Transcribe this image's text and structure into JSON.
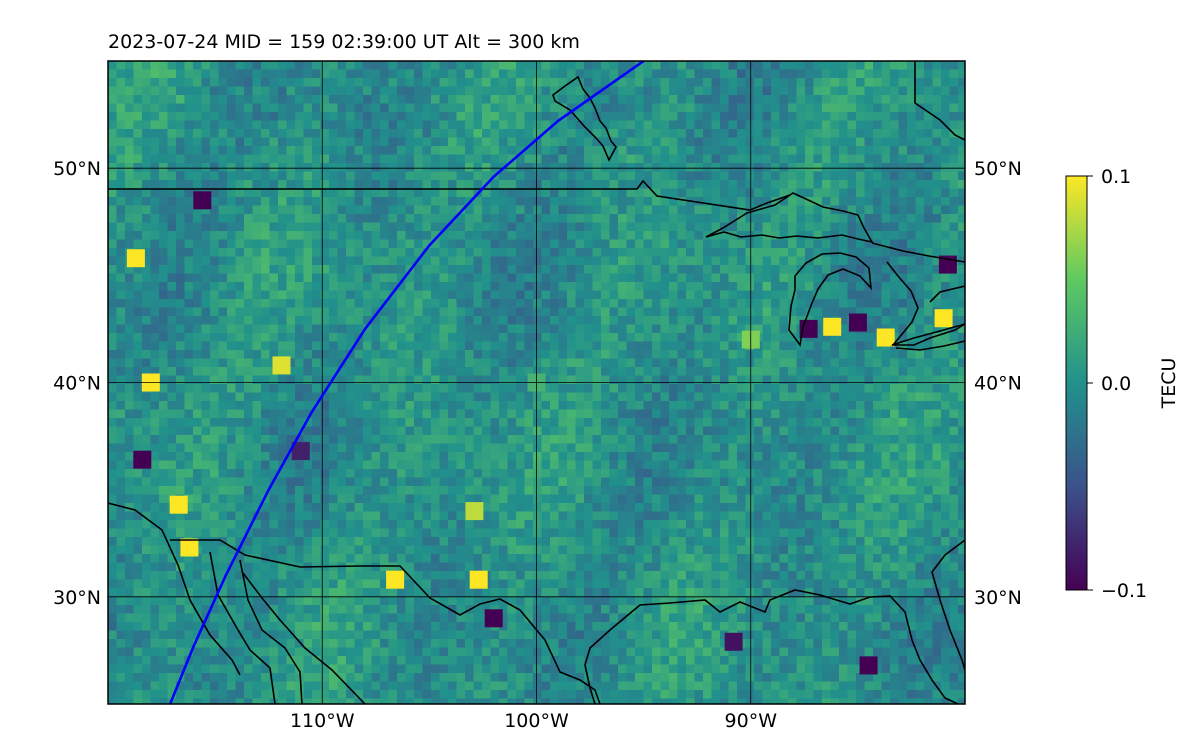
{
  "title": "2023-07-24  MID = 159    02:39:00  UT  Alt = 300 km",
  "chart_data": {
    "type": "heatmap",
    "title": "2023-07-24  MID = 159    02:39:00  UT  Alt = 300 km",
    "map_extent": {
      "lon": [
        -120,
        -80
      ],
      "lat": [
        25,
        55
      ]
    },
    "x_ticks": [
      {
        "value": -110,
        "label": "110°W"
      },
      {
        "value": -100,
        "label": "100°W"
      },
      {
        "value": -90,
        "label": "90°W"
      }
    ],
    "y_ticks": [
      {
        "value": 30,
        "label": "30°N"
      },
      {
        "value": 40,
        "label": "40°N"
      },
      {
        "value": 50,
        "label": "50°N"
      }
    ],
    "grid": true,
    "colormap": "viridis",
    "colorbar": {
      "label": "TECU",
      "range": [
        -0.1,
        0.1
      ],
      "ticks": [
        {
          "value": 0.1,
          "label": "0.1"
        },
        {
          "value": 0.0,
          "label": "0.0"
        },
        {
          "value": -0.1,
          "label": "−0.1"
        }
      ]
    },
    "overlays": [
      {
        "kind": "track",
        "color": "#0000ff",
        "points": [
          [
            -117.1,
            25.0
          ],
          [
            -116.0,
            27.7
          ],
          [
            -114.5,
            31.0
          ],
          [
            -112.5,
            35.0
          ],
          [
            -110.5,
            38.6
          ],
          [
            -108.0,
            42.5
          ],
          [
            -105.0,
            46.4
          ],
          [
            -102.0,
            49.6
          ],
          [
            -99.0,
            52.2
          ],
          [
            -95.0,
            55.0
          ]
        ]
      }
    ],
    "anomalies": [
      {
        "lon": -118.7,
        "lat": 45.8,
        "value": 0.1
      },
      {
        "lon": -115.6,
        "lat": 48.5,
        "value": -0.1
      },
      {
        "lon": -116.7,
        "lat": 34.3,
        "value": 0.1
      },
      {
        "lon": -118.4,
        "lat": 36.4,
        "value": -0.1
      },
      {
        "lon": -116.2,
        "lat": 32.3,
        "value": 0.1
      },
      {
        "lon": -118.0,
        "lat": 40.0,
        "value": 0.1
      },
      {
        "lon": -111.9,
        "lat": 40.8,
        "value": 0.09
      },
      {
        "lon": -106.6,
        "lat": 30.8,
        "value": 0.1
      },
      {
        "lon": -102.9,
        "lat": 34.0,
        "value": 0.08
      },
      {
        "lon": -102.7,
        "lat": 30.8,
        "value": 0.1
      },
      {
        "lon": -102.0,
        "lat": 29.0,
        "value": -0.1
      },
      {
        "lon": -111.0,
        "lat": 36.8,
        "value": -0.08
      },
      {
        "lon": -90.8,
        "lat": 27.9,
        "value": -0.09
      },
      {
        "lon": -84.5,
        "lat": 26.8,
        "value": -0.1
      },
      {
        "lon": -87.3,
        "lat": 42.5,
        "value": -0.1
      },
      {
        "lon": -85.0,
        "lat": 42.8,
        "value": -0.1
      },
      {
        "lon": -83.7,
        "lat": 42.1,
        "value": 0.1
      },
      {
        "lon": -86.2,
        "lat": 42.6,
        "value": 0.1
      },
      {
        "lon": -81.0,
        "lat": 43.0,
        "value": 0.1
      },
      {
        "lon": -80.8,
        "lat": 45.5,
        "value": -0.1
      },
      {
        "lon": -90.0,
        "lat": 42.0,
        "value": 0.06
      },
      {
        "lon": -100.0,
        "lat": 40.0,
        "value": 0.03
      }
    ]
  }
}
